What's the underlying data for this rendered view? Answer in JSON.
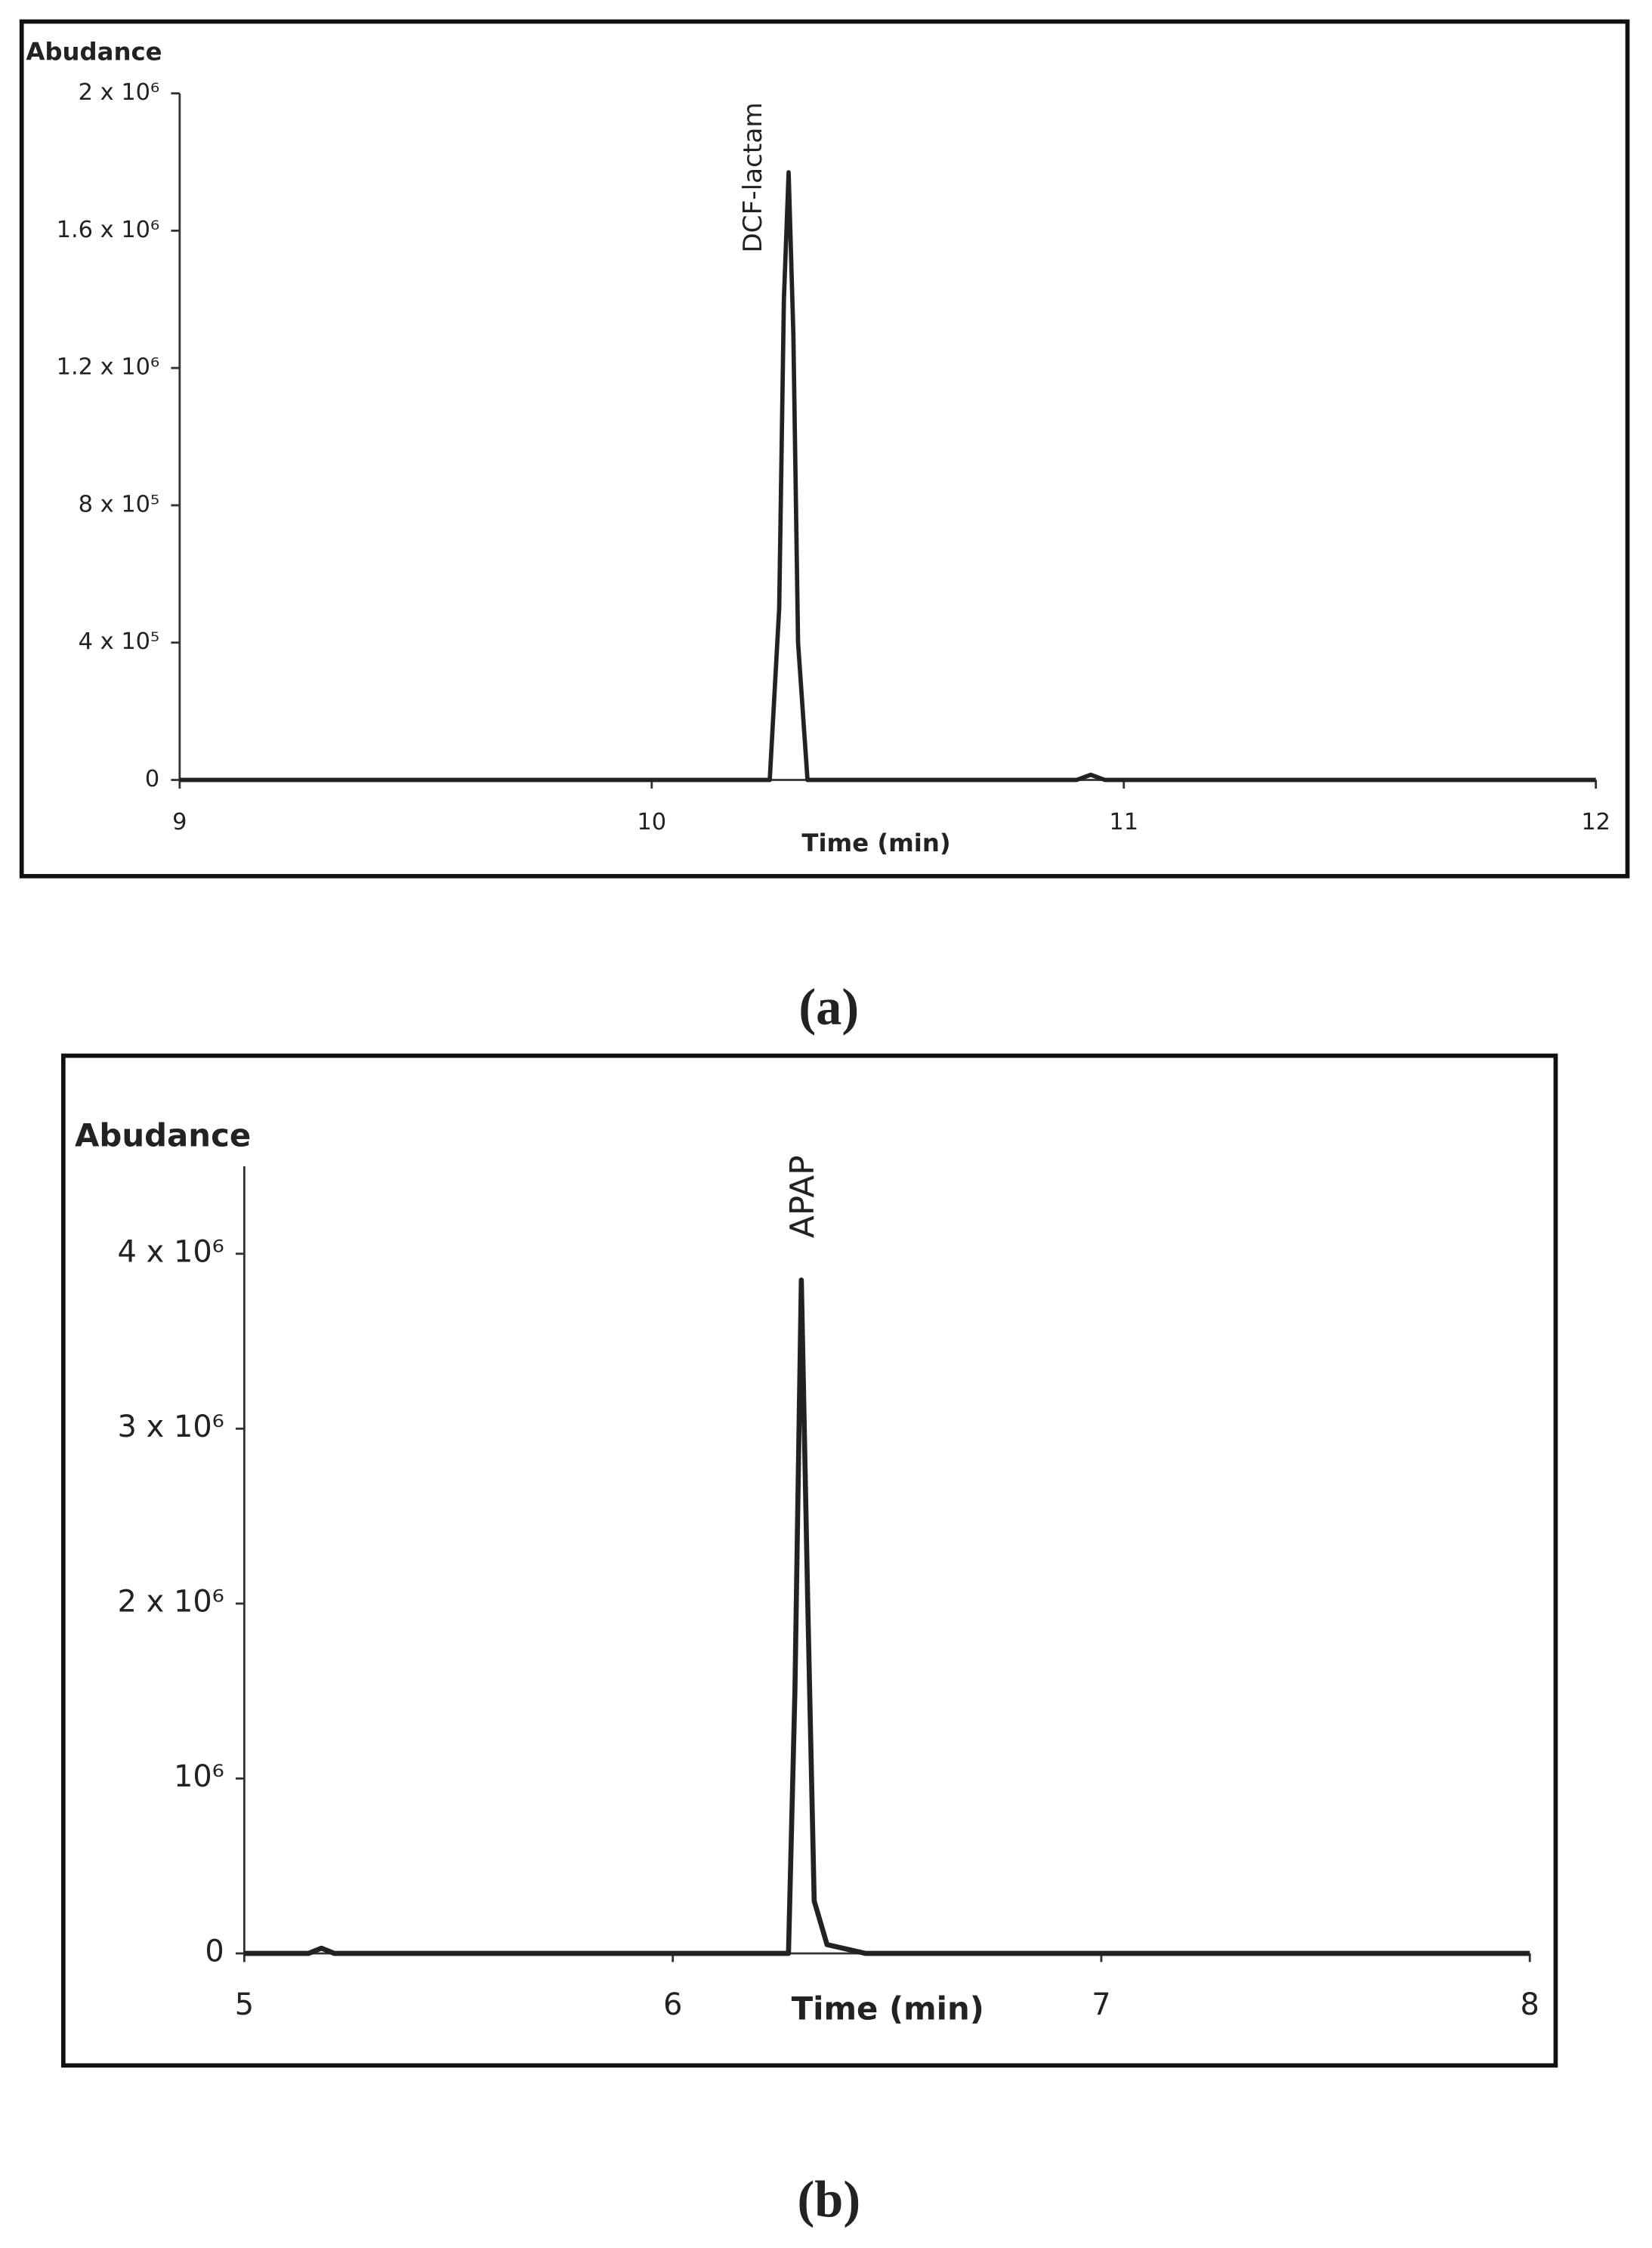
{
  "chart_data": [
    {
      "type": "line",
      "y_label": "Abudance",
      "x_label": "Time (min)",
      "annotation": "DCF-lactam",
      "panel_label": "(a)",
      "x": [
        9,
        10.25,
        10.27,
        10.28,
        10.29,
        10.3,
        10.31,
        10.33,
        10.9,
        10.93,
        10.96,
        12
      ],
      "series": [
        {
          "color": "#222222",
          "values": [
            0,
            0,
            500000,
            1400000,
            1770000,
            1300000,
            400000,
            0,
            0,
            15000,
            0,
            0
          ]
        }
      ],
      "xlim": [
        9,
        12
      ],
      "xticks": [
        9,
        10,
        11,
        12
      ],
      "ylim": [
        0,
        2000000
      ],
      "yticks": [
        0,
        {
          "value": 400000,
          "label": "4 x 10⁵"
        },
        {
          "value": 800000,
          "label": "8 x 10⁵"
        },
        {
          "value": 1200000,
          "label": "1.2 x 10⁶"
        },
        {
          "value": 1600000,
          "label": "1.6 x 10⁶"
        },
        {
          "value": 2000000,
          "label": "2 x 10⁶"
        }
      ]
    },
    {
      "type": "line",
      "y_label": "Abudance",
      "x_label": "Time (min)",
      "annotation": "APAP",
      "panel_label": "(b)",
      "x": [
        5,
        5.15,
        5.18,
        5.21,
        6.27,
        6.285,
        6.3,
        6.315,
        6.33,
        6.36,
        6.45,
        8
      ],
      "series": [
        {
          "color": "#222222",
          "values": [
            0,
            0,
            30000,
            0,
            0,
            1500000,
            3850000,
            2000000,
            300000,
            50000,
            0,
            0
          ]
        }
      ],
      "xlim": [
        5,
        8
      ],
      "xticks": [
        5,
        6,
        7,
        8
      ],
      "ylim": [
        0,
        4500000
      ],
      "yticks": [
        0,
        {
          "value": 1000000,
          "label": "10⁶"
        },
        {
          "value": 2000000,
          "label": "2 x 10⁶"
        },
        {
          "value": 3000000,
          "label": "3 x 10⁶"
        },
        {
          "value": 4000000,
          "label": "4 x 10⁶"
        }
      ]
    }
  ]
}
